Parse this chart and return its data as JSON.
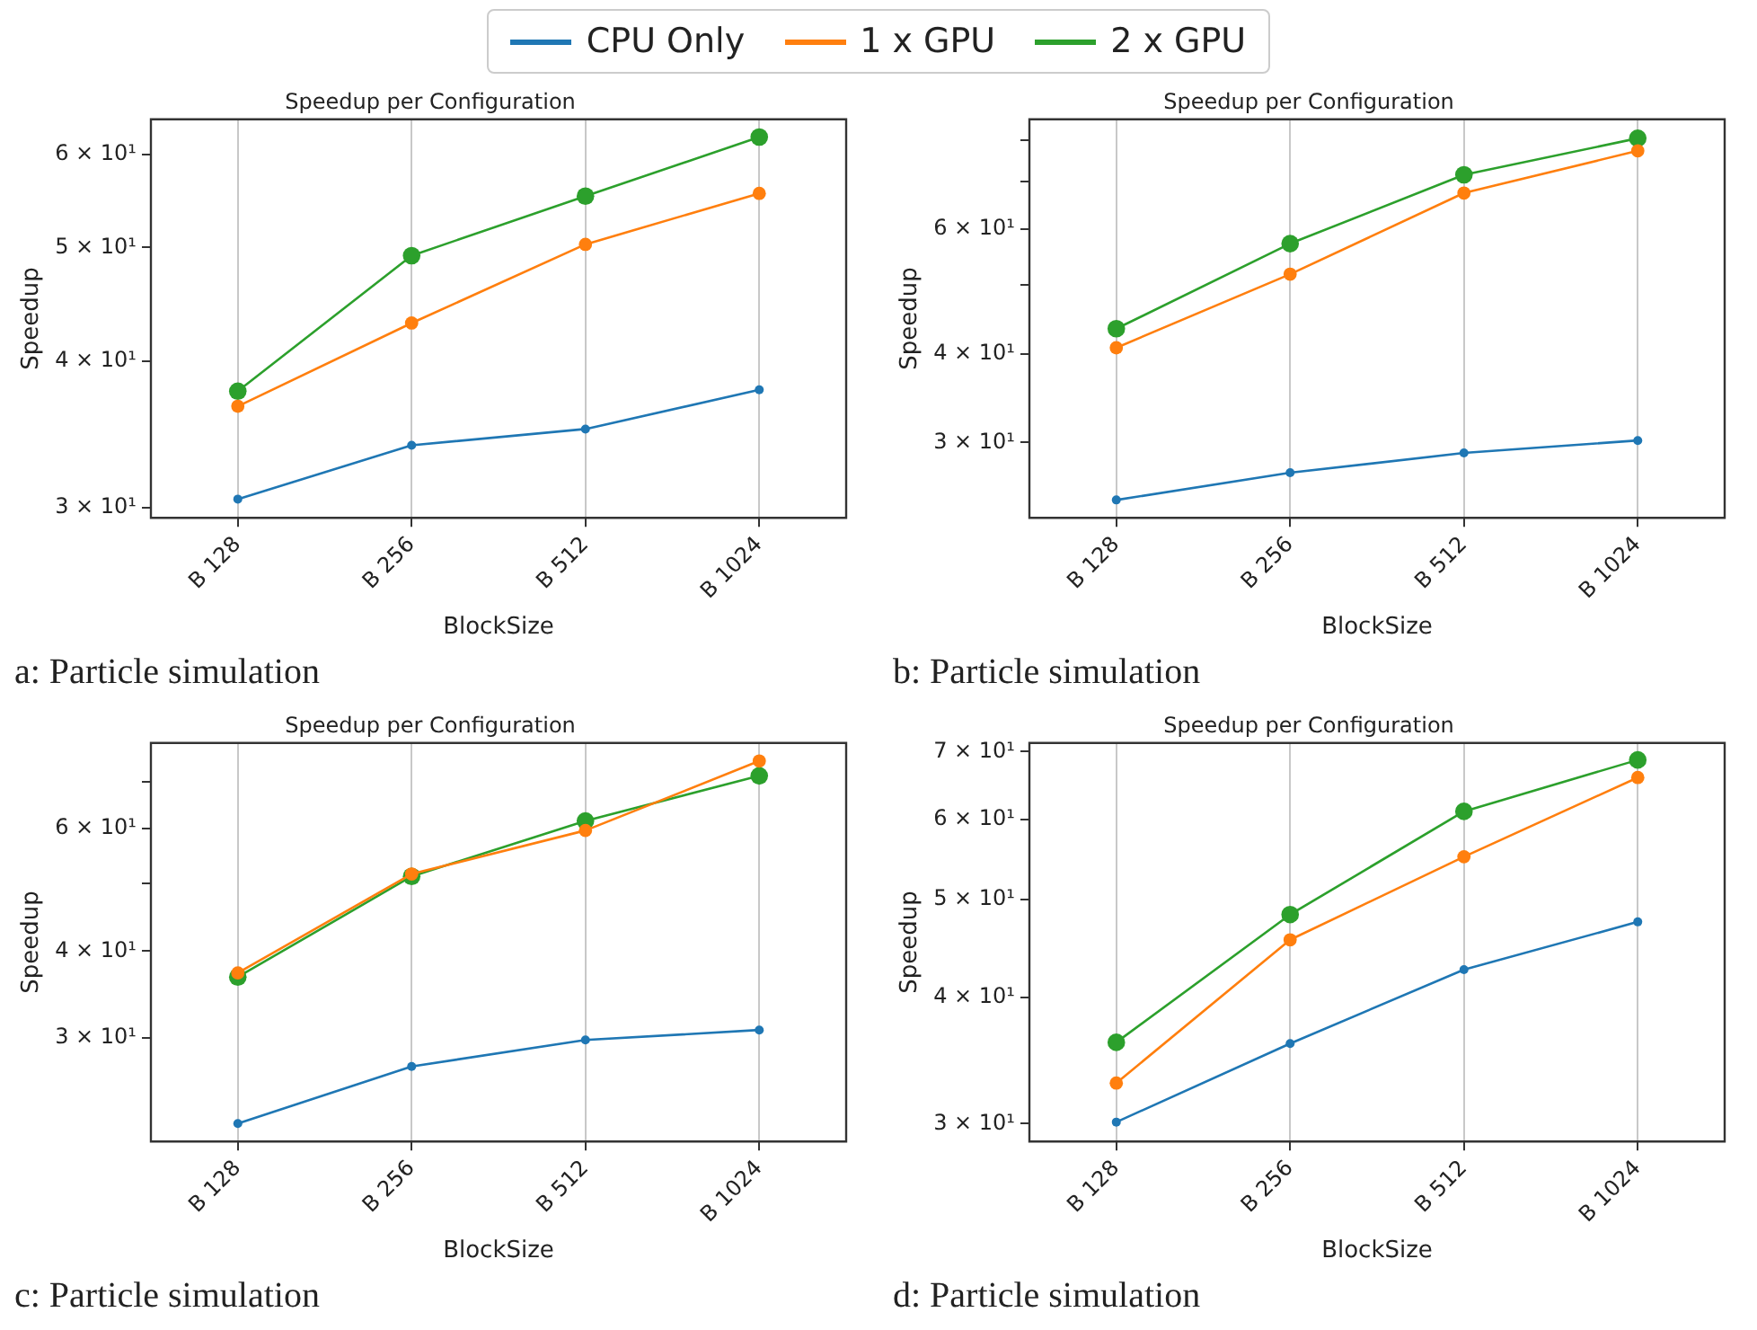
{
  "chart_data": [
    {
      "type": "line",
      "title": "Speedup per Configuration",
      "xlabel": "BlockSize",
      "ylabel": "Speedup",
      "categories": [
        "B 128",
        "B 256",
        "B 512",
        "B 1024"
      ],
      "log": "y",
      "grid": "x",
      "marker": "circle",
      "legend": "top",
      "ylim": [
        29.4,
        64.3
      ],
      "yticks": [
        {
          "value": 30,
          "label": "3 × 10¹"
        },
        {
          "value": 40,
          "label": "4 × 10¹"
        },
        {
          "value": 50,
          "label": "5 × 10¹"
        },
        {
          "value": 60,
          "label": "6 × 10¹"
        }
      ],
      "annotations": [
        "a: Particle simulation"
      ],
      "series": [
        {
          "name": "CPU Only",
          "color": "#1f77b4",
          "values": [
            30.5,
            33.9,
            35.0,
            37.8
          ]
        },
        {
          "name": "1 x GPU",
          "color": "#ff7f0e",
          "values": [
            36.6,
            43.1,
            50.3,
            55.6
          ]
        },
        {
          "name": "2 x GPU",
          "color": "#2ca02c",
          "values": [
            37.7,
            49.2,
            55.3,
            62.1
          ]
        }
      ]
    },
    {
      "type": "line",
      "title": "Speedup per Configuration",
      "xlabel": "BlockSize",
      "ylabel": "Speedup",
      "categories": [
        "B 128",
        "B 256",
        "B 512",
        "B 1024"
      ],
      "log": "y",
      "grid": "x",
      "marker": "circle",
      "ylim": [
        23.5,
        85.6
      ],
      "yticks": [
        {
          "value": 30,
          "label": "3 × 10¹"
        },
        {
          "value": 40,
          "label": "4 × 10¹"
        },
        {
          "value": 50,
          "label": null
        },
        {
          "value": 60,
          "label": "6 × 10¹"
        },
        {
          "value": 70,
          "label": null
        },
        {
          "value": 80,
          "label": null
        }
      ],
      "annotations": [
        "b: Particle simulation"
      ],
      "series": [
        {
          "color": "#1f77b4",
          "values": [
            24.9,
            27.2,
            29.0,
            30.2
          ]
        },
        {
          "color": "#ff7f0e",
          "values": [
            40.8,
            51.8,
            67.4,
            77.3
          ]
        },
        {
          "color": "#2ca02c",
          "values": [
            43.4,
            57.2,
            71.5,
            80.5
          ]
        }
      ]
    },
    {
      "type": "line",
      "title": "Speedup per Configuration",
      "xlabel": "BlockSize",
      "ylabel": "Speedup",
      "categories": [
        "B 128",
        "B 256",
        "B 512",
        "B 1024"
      ],
      "log": "y",
      "grid": "x",
      "marker": "circle",
      "ylim": [
        21.3,
        79.6
      ],
      "yticks": [
        {
          "value": 30,
          "label": "3 × 10¹"
        },
        {
          "value": 40,
          "label": "4 × 10¹"
        },
        {
          "value": 50,
          "label": null
        },
        {
          "value": 60,
          "label": "6 × 10¹"
        },
        {
          "value": 70,
          "label": null
        }
      ],
      "annotations": [
        "c: Particle simulation"
      ],
      "series": [
        {
          "color": "#1f77b4",
          "values": [
            22.6,
            27.3,
            29.8,
            30.8
          ]
        },
        {
          "color": "#ff7f0e",
          "values": [
            37.2,
            51.6,
            59.6,
            75.0
          ]
        },
        {
          "color": "#2ca02c",
          "values": [
            36.7,
            51.2,
            61.5,
            71.4
          ]
        }
      ]
    },
    {
      "type": "line",
      "title": "Speedup per Configuration",
      "xlabel": "BlockSize",
      "ylabel": "Speedup",
      "categories": [
        "B 128",
        "B 256",
        "B 512",
        "B 1024"
      ],
      "log": "y",
      "grid": "x",
      "marker": "circle",
      "ylim": [
        28.8,
        71.4
      ],
      "yticks": [
        {
          "value": 30,
          "label": "3 × 10¹"
        },
        {
          "value": 40,
          "label": "4 × 10¹"
        },
        {
          "value": 50,
          "label": "5 × 10¹"
        },
        {
          "value": 60,
          "label": "6 × 10¹"
        },
        {
          "value": 70,
          "label": "7 × 10¹"
        }
      ],
      "annotations": [
        "d: Particle simulation"
      ],
      "series": [
        {
          "color": "#1f77b4",
          "values": [
            30.1,
            36.0,
            42.6,
            47.5
          ]
        },
        {
          "color": "#ff7f0e",
          "values": [
            32.9,
            45.6,
            55.1,
            66.0
          ]
        },
        {
          "color": "#2ca02c",
          "values": [
            36.1,
            48.3,
            61.1,
            68.7
          ]
        }
      ]
    }
  ]
}
